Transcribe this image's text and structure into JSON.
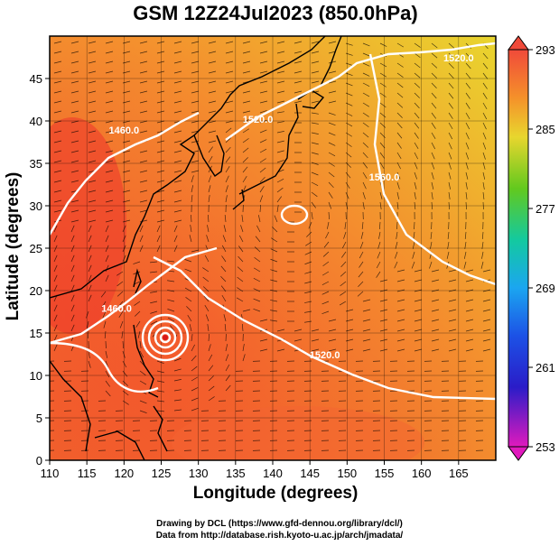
{
  "title": "GSM 12Z24Jul2023 (850.0hPa)",
  "xlabel": "Longitude (degrees)",
  "ylabel": "Latitude  (degrees)",
  "credits": [
    "Drawing by DCL (https://www.gfd-dennou.org/library/dcl/)",
    "Data from http://database.rish.kyoto-u.ac.jp/arch/jmadata/"
  ],
  "colors": {
    "warm": "#ee3a1a",
    "hot": "#f25a3f",
    "orange": "#f8a024",
    "yellow": "#e8d62e",
    "contour": "#ffffff",
    "coast": "#000000"
  },
  "chart_data": {
    "type": "heatmap",
    "xlim": [
      110,
      170
    ],
    "ylim": [
      0,
      50
    ],
    "x_ticks": [
      110,
      115,
      120,
      125,
      130,
      135,
      140,
      145,
      150,
      155,
      160,
      165
    ],
    "y_ticks": [
      0,
      5,
      10,
      15,
      20,
      25,
      30,
      35,
      40,
      45
    ],
    "colorbar": {
      "min": 253,
      "max": 293,
      "tick_labels": [
        293,
        285,
        277,
        269,
        261,
        253
      ]
    },
    "contour_labels": [
      {
        "text": "1460.0",
        "lon": 120,
        "lat": 38.5
      },
      {
        "text": "1520.0",
        "lon": 138,
        "lat": 39.8
      },
      {
        "text": "1560.0",
        "lon": 155,
        "lat": 33
      },
      {
        "text": "1520.0",
        "lon": 147,
        "lat": 12
      },
      {
        "text": "1460.0",
        "lon": 119,
        "lat": 17.5
      },
      {
        "text": "1520.0",
        "lon": 165,
        "lat": 47
      }
    ],
    "cyclone_center": {
      "lon": 126,
      "lat": 16.3
    },
    "high_center": {
      "lon": 143,
      "lat": 28.5
    },
    "overlays": [
      "temperature shading",
      "geopotential height contours",
      "streamlines",
      "coastlines",
      "grid"
    ]
  }
}
